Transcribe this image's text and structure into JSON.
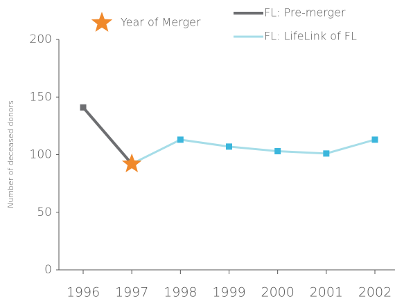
{
  "chart_data": {
    "type": "line",
    "y_label": "Number of deceased donors",
    "categories": [
      "1996",
      "1997",
      "1998",
      "1999",
      "2000",
      "2001",
      "2002"
    ],
    "series": [
      {
        "name": "FL: Pre-merger",
        "color": "#6d6e71",
        "marker_color": "#6d6e71",
        "values": [
          141,
          92,
          null,
          null,
          null,
          null,
          null
        ]
      },
      {
        "name": "FL: LifeLink of FL",
        "color": "#a6dde8",
        "marker_color": "#3bb6dc",
        "values": [
          null,
          92,
          113,
          107,
          103,
          101,
          113
        ]
      }
    ],
    "annotation": {
      "text": "Year of Merger",
      "category": 1,
      "value": 92,
      "color": "#f0892b"
    },
    "ylim": [
      0,
      200
    ],
    "yticks": [
      0,
      50,
      100,
      150,
      200
    ],
    "grid": false
  }
}
